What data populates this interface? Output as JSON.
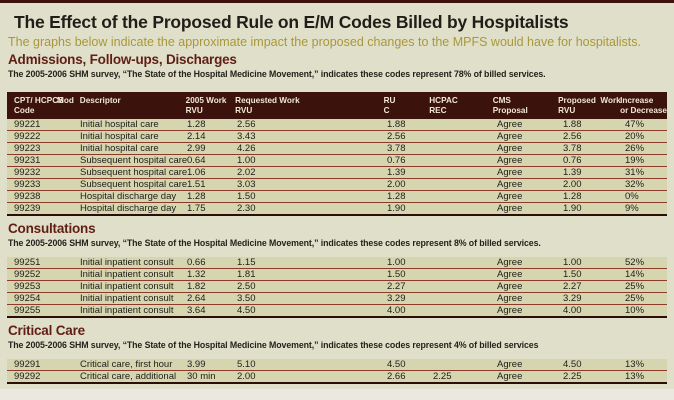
{
  "page": {
    "title": "The Effect of the Proposed Rule on E/M Codes Billed by Hospitalists",
    "subtitle": "The graphs below indicate the approximate impact the proposed changes to the MPFS would have for hospitalists."
  },
  "colors": {
    "header_bar": "#3b130c",
    "header_text": "#f0e8d4",
    "row_background": "#d5d6b0",
    "panel_background": "#e0dfca",
    "separator_maroon": "#8c3b2b",
    "heading_maroon": "#5f1f15",
    "subtitle_gold": "#a89838"
  },
  "table": {
    "columns": [
      {
        "label": "CPT/ HCPCS\nCode"
      },
      {
        "label": "Mod"
      },
      {
        "label": "Descriptor"
      },
      {
        "label": "2005 Work\nRVU"
      },
      {
        "label": "Requested Work\nRVU"
      },
      {
        "label": "RU\nC"
      },
      {
        "label": "HCPAC\nREC"
      },
      {
        "label": "CMS\nProposal"
      },
      {
        "label": "Proposed  Work\nRVU"
      },
      {
        "label": "Increase\nor Decrease"
      }
    ]
  },
  "sections": [
    {
      "heading": "Admissions, Follow-ups, Discharges",
      "note": "The 2005-2006 SHM survey, “The State of the Hospital Medicine Movement,” indicates these codes represent 78% of billed services.",
      "rows": [
        {
          "cells": [
            "99221",
            "",
            "Initial hospital care",
            "1.28",
            "2.56",
            "1.88",
            "",
            "Agree",
            "1.88",
            "47%"
          ]
        },
        {
          "cells": [
            "99222",
            "",
            "Initial hospital care",
            "2.14",
            "3.43",
            "2.56",
            "",
            "Agree",
            "2.56",
            "20%"
          ]
        },
        {
          "cells": [
            "99223",
            "",
            "Initial hospital care",
            "2.99",
            "4.26",
            "3.78",
            "",
            "Agree",
            "3.78",
            "26%"
          ]
        },
        {
          "cells": [
            "99231",
            "",
            "Subsequent hospital care",
            "0.64",
            "1.00",
            "0.76",
            "",
            "Agree",
            "0.76",
            "19%"
          ]
        },
        {
          "cells": [
            "99232",
            "",
            "Subsequent hospital care",
            "1.06",
            "2.02",
            "1.39",
            "",
            "Agree",
            "1.39",
            "31%"
          ]
        },
        {
          "cells": [
            "99233",
            "",
            "Subsequent hospital care",
            "1.51",
            "3.03",
            "2.00",
            "",
            "Agree",
            "2.00",
            "32%"
          ]
        },
        {
          "cells": [
            "99238",
            "",
            "Hospital discharge day",
            "1.28",
            "1.50",
            "1.28",
            "",
            "Agree",
            "1.28",
            "0%"
          ]
        },
        {
          "cells": [
            "99239",
            "",
            "Hospital discharge day",
            "1.75",
            "2.30",
            "1.90",
            "",
            "Agree",
            "1.90",
            "9%"
          ]
        }
      ]
    },
    {
      "heading": "Consultations",
      "note": "The 2005-2006 SHM survey, “The State of the Hospital Medicine Movement,” indicates these codes represent 8% of billed services.",
      "rows": [
        {
          "cells": [
            "99251",
            "",
            "Initial inpatient consult",
            "0.66",
            "1.15",
            "1.00",
            "",
            "Agree",
            "1.00",
            "52%"
          ]
        },
        {
          "cells": [
            "99252",
            "",
            "Initial inpatient consult",
            "1.32",
            "1.81",
            "1.50",
            "",
            "Agree",
            "1.50",
            "14%"
          ]
        },
        {
          "cells": [
            "99253",
            "",
            "Initial inpatient consult",
            "1.82",
            "2.50",
            "2.27",
            "",
            "Agree",
            "2.27",
            "25%"
          ]
        },
        {
          "cells": [
            "99254",
            "",
            "Initial inpatient consult",
            "2.64",
            "3.50",
            "3.29",
            "",
            "Agree",
            "3.29",
            "25%"
          ]
        },
        {
          "cells": [
            "99255",
            "",
            "Initial inpatient consult",
            "3.64",
            "4.50",
            "4.00",
            "",
            "Agree",
            "4.00",
            "10%"
          ]
        }
      ]
    },
    {
      "heading": "Critical Care",
      "note": "The 2005-2006 SHM survey, “The State of the Hospital Medicine Movement,” indicates these codes represent 4% of billed services",
      "rows": [
        {
          "cells": [
            "99291",
            "",
            "Critical care, first hour",
            "3.99",
            "5.10",
            "4.50",
            "",
            "Agree",
            "4.50",
            "13%"
          ]
        },
        {
          "cells": [
            "99292",
            "",
            "Critical care, additional",
            "30 min",
            "2.00",
            "2.66",
            "2.25",
            "Agree",
            "2.25",
            "13%"
          ]
        }
      ]
    }
  ]
}
